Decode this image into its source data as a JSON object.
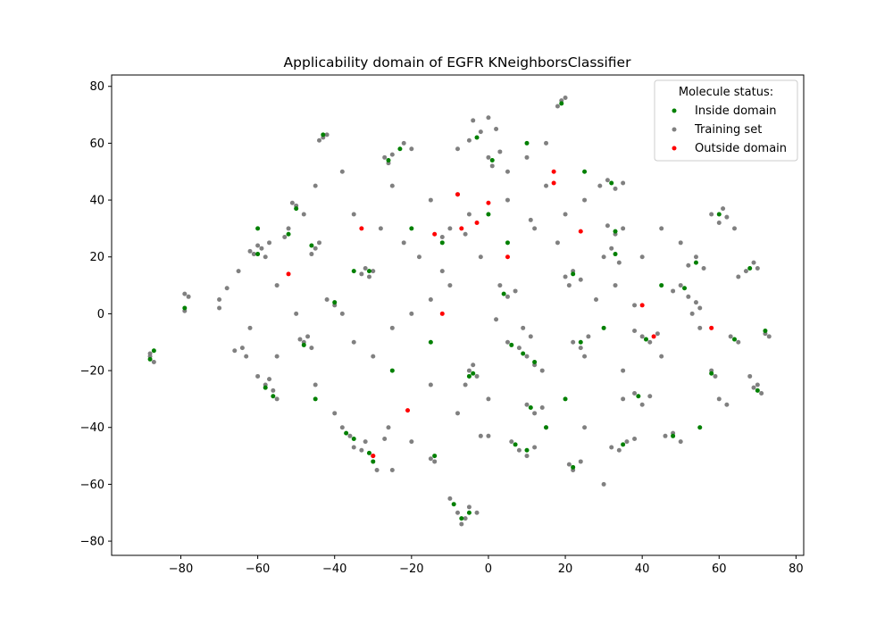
{
  "chart_data": {
    "type": "scatter",
    "title": "Applicability domain of EGFR KNeighborsClassifier",
    "xlabel": "",
    "ylabel": "",
    "xlim": [
      -98,
      82
    ],
    "ylim": [
      -85,
      84
    ],
    "x_ticks": [
      -80,
      -60,
      -40,
      -20,
      0,
      20,
      40,
      60,
      80
    ],
    "y_ticks": [
      -80,
      -60,
      -40,
      -20,
      0,
      20,
      40,
      60,
      80
    ],
    "x_tick_labels": [
      "−80",
      "−60",
      "−40",
      "−20",
      "0",
      "20",
      "40",
      "60",
      "80"
    ],
    "y_tick_labels": [
      "−80",
      "−60",
      "−40",
      "−20",
      "0",
      "20",
      "40",
      "60",
      "80"
    ],
    "grid": false,
    "legend": {
      "title": "Molecule status:",
      "placement": "upper right",
      "entries": [
        "Inside domain",
        "Training set",
        "Outside domain"
      ]
    },
    "colors": {
      "Inside domain": "#008000",
      "Training set": "#808080",
      "Outside domain": "#ff0000"
    },
    "series": [
      {
        "name": "Training set",
        "points": [
          [
            -88,
            -15
          ],
          [
            -87,
            -17
          ],
          [
            -88,
            -14
          ],
          [
            -79,
            7
          ],
          [
            -78,
            6
          ],
          [
            -79,
            1
          ],
          [
            -70,
            2
          ],
          [
            -68,
            9
          ],
          [
            -60,
            24
          ],
          [
            -58,
            20
          ],
          [
            -61,
            21
          ],
          [
            -59,
            23
          ],
          [
            -57,
            25
          ],
          [
            -62,
            22
          ],
          [
            -58,
            -25
          ],
          [
            -56,
            -27
          ],
          [
            -60,
            -22
          ],
          [
            -55,
            -30
          ],
          [
            -57,
            -23
          ],
          [
            -52,
            30
          ],
          [
            -53,
            27
          ],
          [
            -50,
            38
          ],
          [
            -48,
            35
          ],
          [
            -51,
            39
          ],
          [
            -48,
            -10
          ],
          [
            -46,
            -12
          ],
          [
            -49,
            -9
          ],
          [
            -47,
            -8
          ],
          [
            -45,
            23
          ],
          [
            -46,
            21
          ],
          [
            -44,
            25
          ],
          [
            -43,
            62
          ],
          [
            -42,
            63
          ],
          [
            -44,
            61
          ],
          [
            -38,
            -40
          ],
          [
            -36,
            -43
          ],
          [
            -35,
            -47
          ],
          [
            -32,
            -45
          ],
          [
            -30,
            -50
          ],
          [
            -29,
            -55
          ],
          [
            -33,
            -48
          ],
          [
            -32,
            16
          ],
          [
            -30,
            15
          ],
          [
            -31,
            13
          ],
          [
            -33,
            14
          ],
          [
            -27,
            55
          ],
          [
            -26,
            53
          ],
          [
            -25,
            56
          ],
          [
            -22,
            60
          ],
          [
            -20,
            58
          ],
          [
            -26,
            -40
          ],
          [
            -27,
            -44
          ],
          [
            -15,
            -51
          ],
          [
            -14,
            -52
          ],
          [
            -12,
            27
          ],
          [
            -10,
            30
          ],
          [
            -8,
            42
          ],
          [
            -6,
            28
          ],
          [
            -10,
            -65
          ],
          [
            -8,
            -70
          ],
          [
            -6,
            -72
          ],
          [
            -5,
            -68
          ],
          [
            -7,
            -74
          ],
          [
            -3,
            -70
          ],
          [
            -5,
            -20
          ],
          [
            -3,
            -22
          ],
          [
            -4,
            -18
          ],
          [
            -6,
            -25
          ],
          [
            -8,
            58
          ],
          [
            -5,
            61
          ],
          [
            -4,
            68
          ],
          [
            -2,
            64
          ],
          [
            0,
            69
          ],
          [
            2,
            65
          ],
          [
            -2,
            -43
          ],
          [
            0,
            -43
          ],
          [
            0,
            55
          ],
          [
            1,
            52
          ],
          [
            3,
            57
          ],
          [
            3,
            10
          ],
          [
            5,
            6
          ],
          [
            7,
            8
          ],
          [
            2,
            -2
          ],
          [
            5,
            -10
          ],
          [
            8,
            -12
          ],
          [
            10,
            -15
          ],
          [
            12,
            -18
          ],
          [
            14,
            -20
          ],
          [
            11,
            -8
          ],
          [
            9,
            -5
          ],
          [
            6,
            -45
          ],
          [
            8,
            -48
          ],
          [
            10,
            -50
          ],
          [
            12,
            -47
          ],
          [
            10,
            -32
          ],
          [
            12,
            -35
          ],
          [
            14,
            -33
          ],
          [
            11,
            33
          ],
          [
            12,
            30
          ],
          [
            18,
            73
          ],
          [
            19,
            75
          ],
          [
            20,
            76
          ],
          [
            20,
            13
          ],
          [
            22,
            15
          ],
          [
            24,
            12
          ],
          [
            21,
            10
          ],
          [
            22,
            -10
          ],
          [
            24,
            -12
          ],
          [
            26,
            -8
          ],
          [
            25,
            -15
          ],
          [
            21,
            -53
          ],
          [
            22,
            -55
          ],
          [
            24,
            -52
          ],
          [
            29,
            45
          ],
          [
            31,
            47
          ],
          [
            33,
            44
          ],
          [
            35,
            46
          ],
          [
            30,
            20
          ],
          [
            32,
            23
          ],
          [
            34,
            18
          ],
          [
            33,
            10
          ],
          [
            31,
            31
          ],
          [
            33,
            28
          ],
          [
            35,
            30
          ],
          [
            32,
            -47
          ],
          [
            34,
            -48
          ],
          [
            36,
            -45
          ],
          [
            38,
            -44
          ],
          [
            35,
            -30
          ],
          [
            38,
            -28
          ],
          [
            40,
            -32
          ],
          [
            42,
            -29
          ],
          [
            38,
            -6
          ],
          [
            40,
            -8
          ],
          [
            42,
            -10
          ],
          [
            44,
            -7
          ],
          [
            46,
            -43
          ],
          [
            48,
            -42
          ],
          [
            50,
            -45
          ],
          [
            48,
            8
          ],
          [
            50,
            10
          ],
          [
            52,
            6
          ],
          [
            54,
            4
          ],
          [
            53,
            0
          ],
          [
            55,
            2
          ],
          [
            52,
            17
          ],
          [
            54,
            20
          ],
          [
            56,
            16
          ],
          [
            58,
            35
          ],
          [
            60,
            32
          ],
          [
            61,
            37
          ],
          [
            62,
            34
          ],
          [
            64,
            30
          ],
          [
            58,
            -20
          ],
          [
            59,
            -22
          ],
          [
            60,
            -30
          ],
          [
            62,
            -32
          ],
          [
            63,
            -8
          ],
          [
            65,
            -10
          ],
          [
            65,
            13
          ],
          [
            67,
            15
          ],
          [
            69,
            18
          ],
          [
            70,
            16
          ],
          [
            68,
            -22
          ],
          [
            70,
            -25
          ],
          [
            71,
            -28
          ],
          [
            69,
            -26
          ],
          [
            72,
            -7
          ],
          [
            73,
            -8
          ],
          [
            -66,
            -13
          ],
          [
            -64,
            -12
          ],
          [
            -63,
            -15
          ],
          [
            -42,
            5
          ],
          [
            -40,
            3
          ],
          [
            -38,
            0
          ],
          [
            -35,
            -10
          ],
          [
            -30,
            -15
          ],
          [
            -25,
            -5
          ],
          [
            -20,
            0
          ],
          [
            -15,
            5
          ],
          [
            -10,
            10
          ],
          [
            -18,
            20
          ],
          [
            -22,
            25
          ],
          [
            -28,
            30
          ],
          [
            -35,
            35
          ],
          [
            -5,
            35
          ],
          [
            5,
            40
          ],
          [
            15,
            45
          ],
          [
            25,
            40
          ],
          [
            0,
            -30
          ],
          [
            15,
            -40
          ],
          [
            30,
            -60
          ],
          [
            45,
            -15
          ],
          [
            55,
            -5
          ],
          [
            -45,
            45
          ],
          [
            -38,
            50
          ],
          [
            -25,
            45
          ],
          [
            -15,
            40
          ],
          [
            -55,
            10
          ],
          [
            -50,
            0
          ],
          [
            -45,
            -25
          ],
          [
            -40,
            -35
          ],
          [
            25,
            -40
          ],
          [
            35,
            -20
          ],
          [
            40,
            20
          ],
          [
            45,
            30
          ],
          [
            50,
            25
          ],
          [
            -20,
            -45
          ],
          [
            -25,
            -55
          ],
          [
            -15,
            -25
          ],
          [
            -8,
            -35
          ],
          [
            18,
            25
          ],
          [
            20,
            35
          ],
          [
            28,
            5
          ],
          [
            38,
            3
          ],
          [
            -65,
            15
          ],
          [
            -70,
            5
          ],
          [
            -62,
            -5
          ],
          [
            -55,
            -15
          ],
          [
            15,
            60
          ],
          [
            10,
            55
          ],
          [
            5,
            50
          ],
          [
            -12,
            15
          ],
          [
            -2,
            20
          ]
        ]
      },
      {
        "name": "Inside domain",
        "points": [
          [
            -88,
            -16
          ],
          [
            -87,
            -13
          ],
          [
            -79,
            2
          ],
          [
            -60,
            21
          ],
          [
            -58,
            -26
          ],
          [
            -56,
            -29
          ],
          [
            -52,
            28
          ],
          [
            -50,
            37
          ],
          [
            -48,
            -11
          ],
          [
            -46,
            24
          ],
          [
            -43,
            63
          ],
          [
            -37,
            -42
          ],
          [
            -35,
            -44
          ],
          [
            -31,
            -49
          ],
          [
            -30,
            -52
          ],
          [
            -31,
            15
          ],
          [
            -26,
            54
          ],
          [
            -23,
            58
          ],
          [
            -14,
            -50
          ],
          [
            -9,
            -67
          ],
          [
            -7,
            -72
          ],
          [
            -5,
            -70
          ],
          [
            -4,
            -21
          ],
          [
            -5,
            -22
          ],
          [
            -3,
            62
          ],
          [
            1,
            54
          ],
          [
            4,
            7
          ],
          [
            6,
            -11
          ],
          [
            9,
            -14
          ],
          [
            12,
            -17
          ],
          [
            7,
            -46
          ],
          [
            10,
            -48
          ],
          [
            11,
            -33
          ],
          [
            19,
            74
          ],
          [
            22,
            14
          ],
          [
            24,
            -10
          ],
          [
            22,
            -54
          ],
          [
            32,
            46
          ],
          [
            33,
            21
          ],
          [
            33,
            29
          ],
          [
            35,
            -46
          ],
          [
            39,
            -29
          ],
          [
            41,
            -9
          ],
          [
            48,
            -43
          ],
          [
            51,
            9
          ],
          [
            54,
            18
          ],
          [
            60,
            35
          ],
          [
            58,
            -21
          ],
          [
            64,
            -9
          ],
          [
            68,
            16
          ],
          [
            70,
            -27
          ],
          [
            72,
            -6
          ],
          [
            -40,
            4
          ],
          [
            -20,
            30
          ],
          [
            -12,
            25
          ],
          [
            0,
            35
          ],
          [
            15,
            -40
          ],
          [
            30,
            -5
          ],
          [
            45,
            10
          ],
          [
            -45,
            -30
          ],
          [
            -25,
            -20
          ],
          [
            20,
            -30
          ],
          [
            5,
            25
          ],
          [
            -60,
            30
          ],
          [
            55,
            -40
          ],
          [
            -35,
            15
          ],
          [
            10,
            60
          ],
          [
            25,
            50
          ],
          [
            -15,
            -10
          ]
        ]
      },
      {
        "name": "Outside domain",
        "points": [
          [
            -33,
            30
          ],
          [
            -52,
            14
          ],
          [
            -14,
            28
          ],
          [
            -8,
            42
          ],
          [
            -7,
            30
          ],
          [
            -3,
            32
          ],
          [
            0,
            39
          ],
          [
            5,
            20
          ],
          [
            17,
            50
          ],
          [
            17,
            46
          ],
          [
            24,
            29
          ],
          [
            40,
            3
          ],
          [
            58,
            -5
          ],
          [
            -21,
            -34
          ],
          [
            -30,
            -50
          ],
          [
            -12,
            0
          ],
          [
            43,
            -8
          ]
        ]
      }
    ]
  }
}
